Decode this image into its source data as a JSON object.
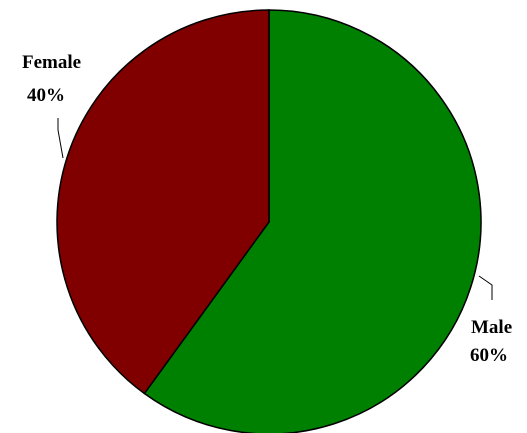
{
  "chart_data": {
    "type": "pie",
    "title": "",
    "slices": [
      {
        "label": "Male",
        "value": 60,
        "value_label": "60%",
        "color": "#008000"
      },
      {
        "label": "Female",
        "value": 40,
        "value_label": "40%",
        "color": "#800000"
      }
    ],
    "start": "12 o'clock",
    "direction": "clockwise",
    "legend": "none",
    "data_labels": "outside with leader lines"
  }
}
